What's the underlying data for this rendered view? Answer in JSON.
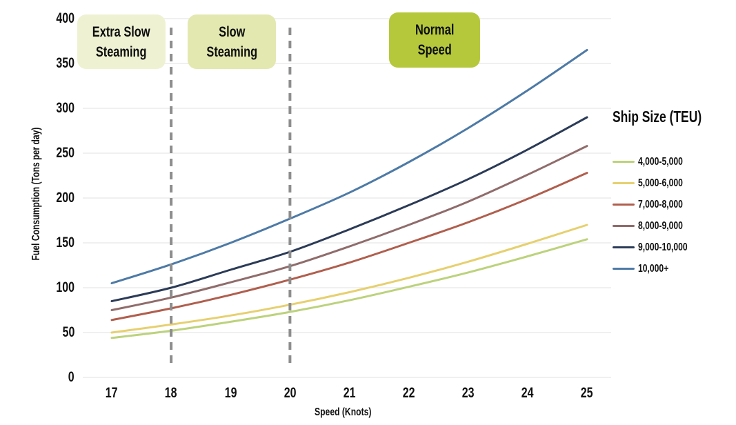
{
  "chart_data": {
    "type": "line",
    "xlabel": "Speed (Knots)",
    "ylabel": "Fuel Consumption (Tons per day)",
    "legend_title": "Ship Size (TEU)",
    "legend_position": "right",
    "grid": "horizontal-only",
    "grid_color": "#ececec",
    "x": [
      17,
      18,
      19,
      20,
      21,
      22,
      23,
      24,
      25
    ],
    "y_ticks": [
      0,
      50,
      100,
      150,
      200,
      250,
      300,
      350,
      400
    ],
    "ylim": [
      0,
      400
    ],
    "xlim": [
      17,
      25
    ],
    "boundaries": [
      18,
      20
    ],
    "boundary_line_color": "#8d8d8d",
    "zones": [
      {
        "line1": "Extra Slow",
        "line2": "Steaming",
        "bg": "#eff1d3"
      },
      {
        "line1": "Slow",
        "line2": "Steaming",
        "bg": "#e3e8b0"
      },
      {
        "line1": "Normal",
        "line2": "Speed",
        "bg": "#b5c83b"
      }
    ],
    "series": [
      {
        "name": "4,000-5,000",
        "color": "#bcd27c",
        "values": [
          44,
          52,
          62,
          73,
          86,
          101,
          117,
          135,
          154
        ]
      },
      {
        "name": "5,000-6,000",
        "color": "#e6d06f",
        "values": [
          50,
          59,
          69,
          81,
          95,
          111,
          129,
          149,
          170
        ]
      },
      {
        "name": "7,000-8,000",
        "color": "#b05e4d",
        "values": [
          64,
          77,
          92,
          109,
          128,
          150,
          173,
          199,
          228
        ]
      },
      {
        "name": "8,000-9,000",
        "color": "#8f6c6b",
        "values": [
          75,
          89,
          106,
          124,
          146,
          170,
          196,
          226,
          258
        ]
      },
      {
        "name": "9,000-10,000",
        "color": "#2b3b57",
        "values": [
          85,
          100,
          120,
          140,
          165,
          192,
          221,
          254,
          290
        ]
      },
      {
        "name": "10,000+",
        "color": "#4d7aa6",
        "values": [
          105,
          126,
          150,
          177,
          206,
          240,
          278,
          320,
          365
        ]
      }
    ]
  }
}
